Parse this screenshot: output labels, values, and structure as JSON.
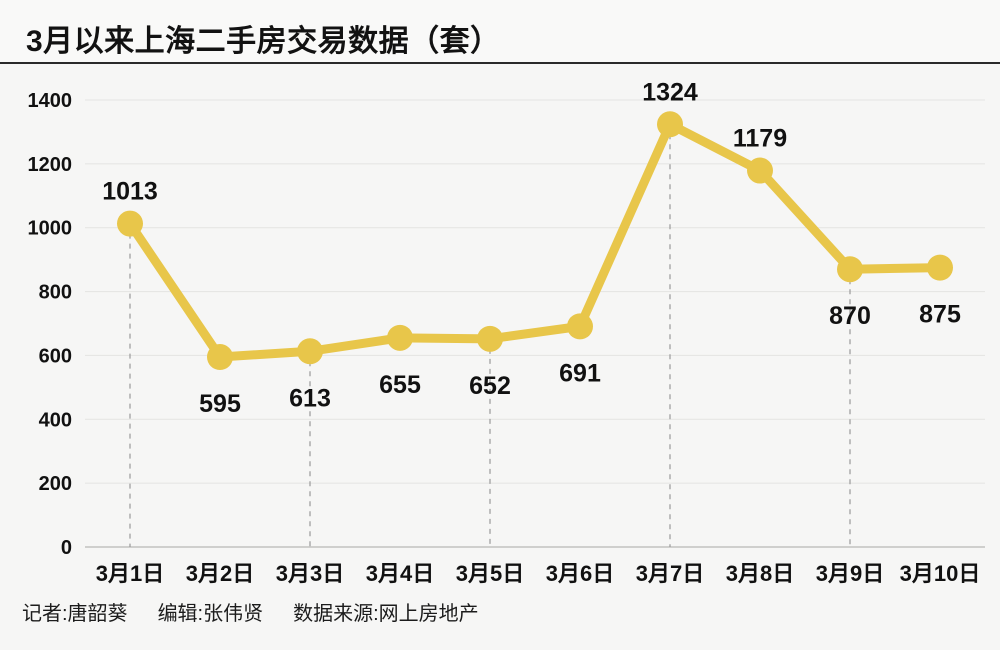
{
  "title": "3月以来上海二手房交易数据（套）",
  "footer": {
    "reporter": "记者:唐韶葵",
    "editor": "编辑:张伟贤",
    "source": "数据来源:网上房地产"
  },
  "colors": {
    "line": "#e8c64a",
    "marker": "#e8c64a",
    "background": "#f6f6f5",
    "grid": "#e4e4e2",
    "axis_baseline": "#c2c2c0",
    "dashed_guide": "#9a9a9a",
    "text": "#111111"
  },
  "chart_data": {
    "type": "line",
    "title": "3月以来上海二手房交易数据（套）",
    "categories": [
      "3月1日",
      "3月2日",
      "3月3日",
      "3月4日",
      "3月5日",
      "3月6日",
      "3月7日",
      "3月8日",
      "3月9日",
      "3月10日"
    ],
    "values": [
      1013,
      595,
      613,
      655,
      652,
      691,
      1324,
      1179,
      870,
      875
    ],
    "xlabel": "",
    "ylabel": "",
    "ylim": [
      0,
      1400
    ],
    "ytick_step": 200,
    "yticks": [
      0,
      200,
      400,
      600,
      800,
      1000,
      1200,
      1400
    ],
    "grid": true,
    "legend": null,
    "dashed_guide_indices": [
      0,
      2,
      4,
      6,
      8
    ],
    "label_above_threshold": 1000
  }
}
